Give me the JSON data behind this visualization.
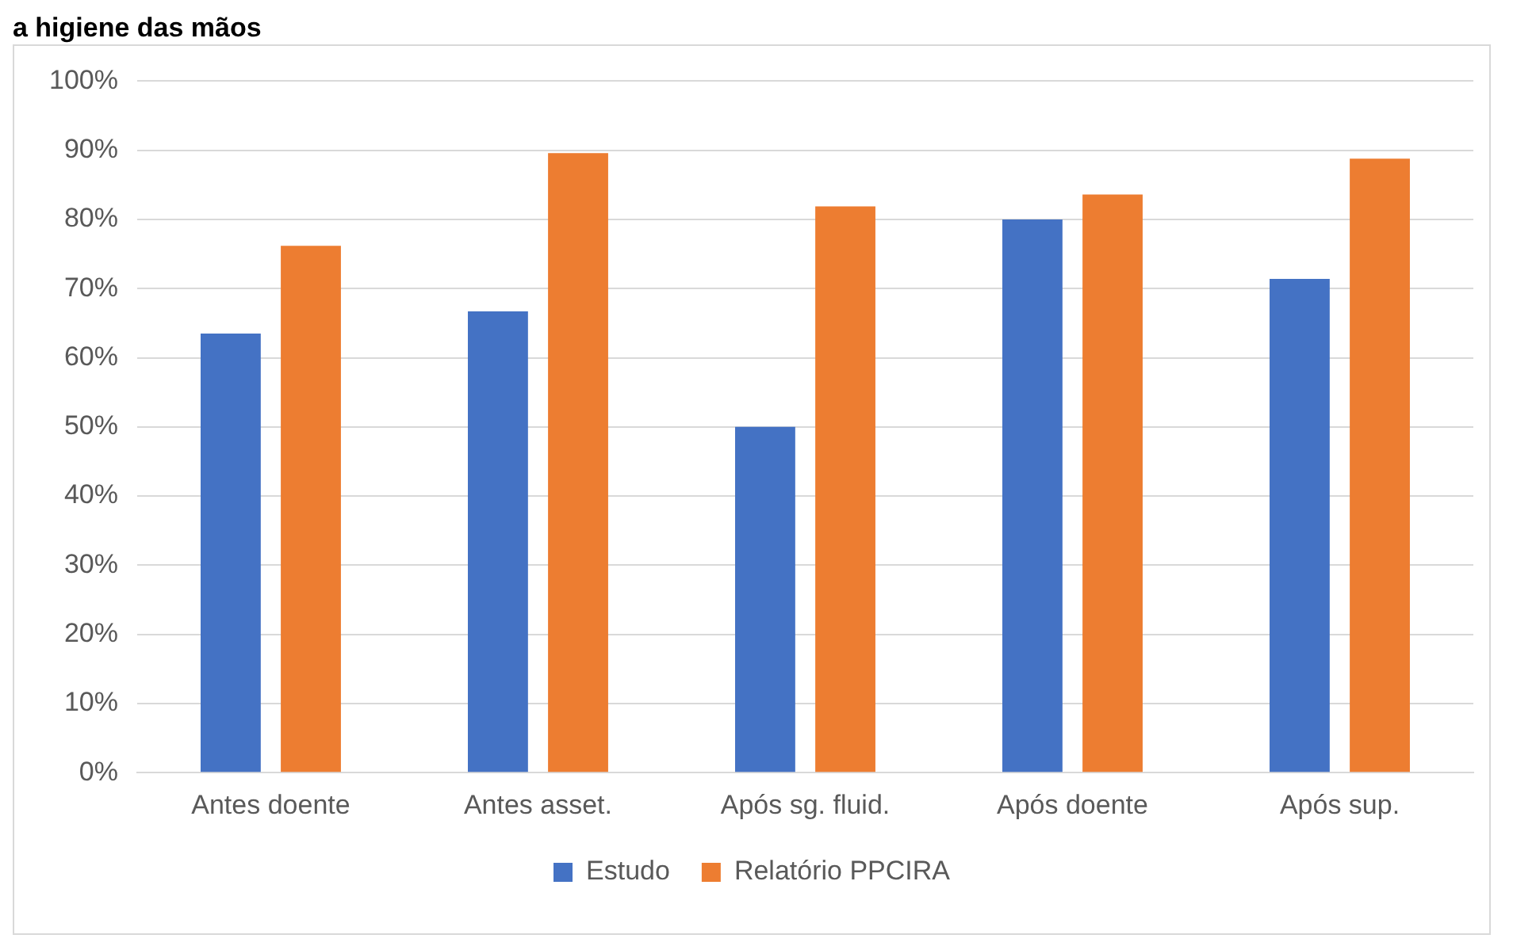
{
  "chart_data": {
    "type": "bar",
    "title": "a higiene das mãos",
    "categories": [
      "Antes doente",
      "Antes asset.",
      "Após sg. fluid.",
      "Após doente",
      "Após sup."
    ],
    "series": [
      {
        "name": "Estudo",
        "color": "#4472c4",
        "values": [
          63.5,
          66.7,
          50,
          80,
          71.4
        ]
      },
      {
        "name": "Relatório PPCIRA",
        "color": "#ed7d31",
        "values": [
          76.2,
          89.6,
          81.9,
          83.6,
          88.8
        ]
      }
    ],
    "ylim": [
      0,
      100
    ],
    "yticks": [
      {
        "value": 0,
        "label": "0%"
      },
      {
        "value": 10,
        "label": "10%"
      },
      {
        "value": 20,
        "label": "20%"
      },
      {
        "value": 30,
        "label": "30%"
      },
      {
        "value": 40,
        "label": "40%"
      },
      {
        "value": 50,
        "label": "50%"
      },
      {
        "value": 60,
        "label": "60%"
      },
      {
        "value": 70,
        "label": "70%"
      },
      {
        "value": 80,
        "label": "80%"
      },
      {
        "value": 90,
        "label": "90%"
      },
      {
        "value": 100,
        "label": "100%"
      }
    ],
    "grid": "y",
    "legend": "bottom"
  }
}
